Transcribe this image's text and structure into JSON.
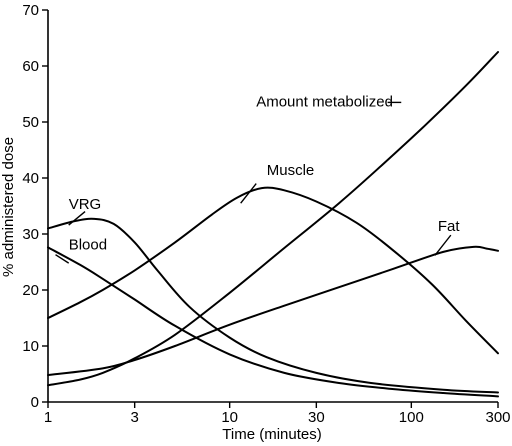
{
  "chart_data": {
    "type": "line",
    "xlabel": "Time (minutes)",
    "ylabel": "% administered dose",
    "xscale": "log",
    "xlim": [
      1,
      300
    ],
    "ylim": [
      0,
      70
    ],
    "x_ticks": [
      {
        "value": 1,
        "label": "1"
      },
      {
        "value": 3,
        "label": "3"
      },
      {
        "value": 10,
        "label": "10"
      },
      {
        "value": 30,
        "label": "30"
      },
      {
        "value": 100,
        "label": "100"
      },
      {
        "value": 300,
        "label": "300"
      }
    ],
    "y_ticks": [
      {
        "value": 0,
        "label": "0"
      },
      {
        "value": 10,
        "label": "10"
      },
      {
        "value": 20,
        "label": "20"
      },
      {
        "value": 30,
        "label": "30"
      },
      {
        "value": 40,
        "label": "40"
      },
      {
        "value": 50,
        "label": "50"
      },
      {
        "value": 60,
        "label": "60"
      },
      {
        "value": 70,
        "label": "70"
      }
    ],
    "grid": false,
    "legend": "none",
    "series": [
      {
        "name": "VRG",
        "label_at": [
          1.3,
          34.5
        ],
        "leader": [
          [
            1.3,
            31.6
          ],
          [
            1.6,
            34
          ]
        ],
        "points": [
          [
            1,
            31
          ],
          [
            1.4,
            32.3
          ],
          [
            1.8,
            32.7
          ],
          [
            2.3,
            31.8
          ],
          [
            3,
            28.5
          ],
          [
            4,
            23.5
          ],
          [
            6,
            17
          ],
          [
            10,
            11.5
          ],
          [
            16,
            8
          ],
          [
            30,
            5.2
          ],
          [
            60,
            3.4
          ],
          [
            150,
            2.2
          ],
          [
            300,
            1.7
          ]
        ]
      },
      {
        "name": "Blood",
        "label_at": [
          1.3,
          27.2
        ],
        "leader": [
          [
            1.1,
            26.3
          ],
          [
            1.3,
            24.8
          ]
        ],
        "points": [
          [
            1,
            27.6
          ],
          [
            1.5,
            24.5
          ],
          [
            2,
            22
          ],
          [
            3,
            18.3
          ],
          [
            5,
            13.6
          ],
          [
            10,
            8.5
          ],
          [
            20,
            5.2
          ],
          [
            40,
            3.4
          ],
          [
            80,
            2.3
          ],
          [
            150,
            1.6
          ],
          [
            300,
            1
          ]
        ]
      },
      {
        "name": "Muscle",
        "label_at": [
          16,
          40.5
        ],
        "leader": [
          [
            11.5,
            35.5
          ],
          [
            14,
            39
          ]
        ],
        "points": [
          [
            1,
            15
          ],
          [
            1.5,
            17.8
          ],
          [
            2,
            20
          ],
          [
            3,
            23.5
          ],
          [
            5,
            28.5
          ],
          [
            8,
            33.5
          ],
          [
            11,
            36.5
          ],
          [
            15,
            38.2
          ],
          [
            20,
            37.8
          ],
          [
            30,
            35.8
          ],
          [
            50,
            32
          ],
          [
            80,
            27
          ],
          [
            130,
            21
          ],
          [
            200,
            14.5
          ],
          [
            300,
            8.7
          ]
        ]
      },
      {
        "name": "Fat",
        "label_at": [
          140,
          30.5
        ],
        "leader": [
          [
            135,
            26.2
          ],
          [
            165,
            29.8
          ]
        ],
        "points": [
          [
            1,
            4.8
          ],
          [
            2,
            6
          ],
          [
            3,
            7.5
          ],
          [
            5,
            10
          ],
          [
            10,
            13.8
          ],
          [
            20,
            17.2
          ],
          [
            40,
            20.5
          ],
          [
            80,
            23.8
          ],
          [
            150,
            26.8
          ],
          [
            220,
            27.7
          ],
          [
            260,
            27.4
          ],
          [
            300,
            27
          ]
        ]
      },
      {
        "name": "Amount metabolized",
        "label_at": [
          14,
          52.8
        ],
        "leader": [
          [
            74,
            53.5
          ],
          [
            88,
            53.5
          ]
        ],
        "points": [
          [
            1,
            3
          ],
          [
            1.5,
            4
          ],
          [
            2,
            5.2
          ],
          [
            3,
            7.8
          ],
          [
            5,
            12
          ],
          [
            10,
            19.5
          ],
          [
            20,
            27.5
          ],
          [
            40,
            35.5
          ],
          [
            70,
            42.5
          ],
          [
            120,
            49.5
          ],
          [
            200,
            56.5
          ],
          [
            300,
            62.5
          ]
        ]
      }
    ]
  }
}
